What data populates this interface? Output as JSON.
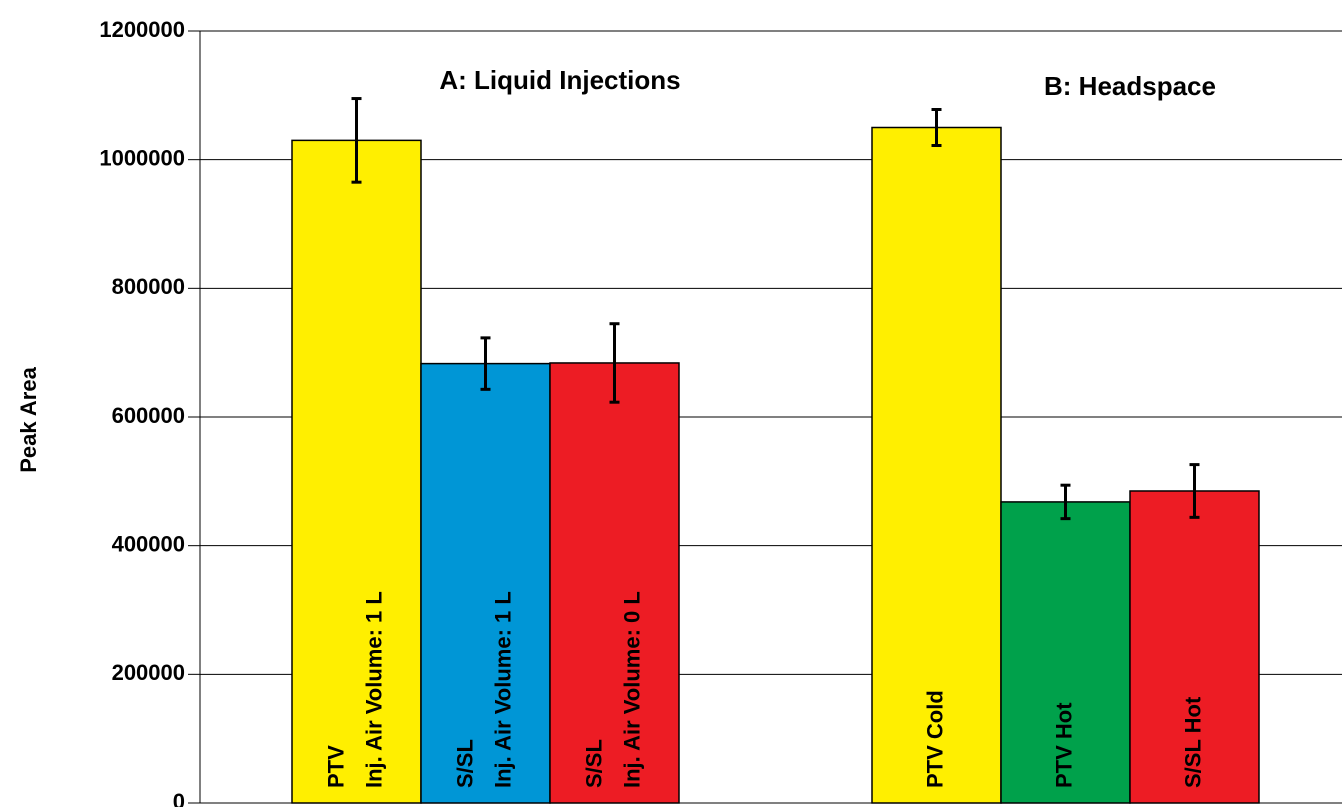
{
  "chart_data": {
    "type": "bar",
    "y_label": "Peak Area",
    "ylim": [
      0,
      1200000
    ],
    "yticks": [
      0,
      200000,
      400000,
      600000,
      800000,
      1000000,
      1200000
    ],
    "grid": true,
    "groups": [
      {
        "title": "A: Liquid Injections",
        "categories": [
          [
            "PTV",
            "Inj. Air Volume: 1 L"
          ],
          [
            "S/SL",
            "Inj. Air Volume: 1 L"
          ],
          [
            "S/SL",
            "Inj. Air Volume: 0 L"
          ]
        ],
        "values": [
          1030000,
          683000,
          684000
        ],
        "errors": [
          65000,
          40000,
          61000
        ],
        "colors": [
          "#ffef00",
          "#0096d6",
          "#ed1c24"
        ]
      },
      {
        "title": "B: Headspace",
        "categories": [
          [
            "PTV Cold"
          ],
          [
            "PTV Hot"
          ],
          [
            "S/SL Hot"
          ]
        ],
        "values": [
          1050000,
          468000,
          485000
        ],
        "errors": [
          28000,
          26000,
          41000
        ],
        "colors": [
          "#ffef00",
          "#00a14b",
          "#ed1c24"
        ]
      }
    ]
  }
}
